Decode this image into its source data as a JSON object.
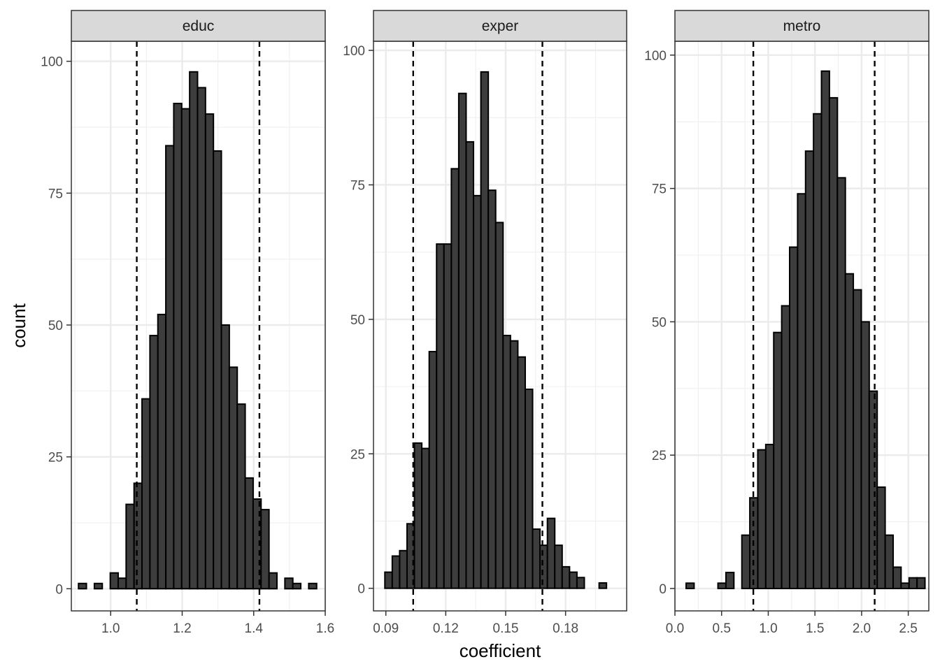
{
  "chart_data": {
    "type": "bar",
    "xlabel": "coefficient",
    "ylabel": "count",
    "grid": true,
    "panels": [
      {
        "name": "educ",
        "xlim": [
          0.89,
          1.6
        ],
        "ylim": [
          -4.2,
          103.8
        ],
        "xticks": [
          1.0,
          1.2,
          1.4,
          1.6
        ],
        "xtick_labels": [
          "1.0",
          "1.2",
          "1.4",
          "1.6"
        ],
        "yticks": [
          0,
          25,
          50,
          75,
          100
        ],
        "ytick_labels": [
          "0",
          "25",
          "50",
          "75",
          "100"
        ],
        "bin_start": 0.91,
        "bin_width": 0.0222,
        "values": [
          1,
          0,
          1,
          0,
          3,
          2,
          16,
          20,
          36,
          48,
          52,
          84,
          92,
          91,
          98,
          95,
          90,
          83,
          50,
          42,
          35,
          21,
          17,
          15,
          3,
          0,
          2,
          1,
          0,
          1
        ],
        "ci_lines": [
          1.073,
          1.416
        ]
      },
      {
        "name": "exper",
        "xlim": [
          0.0838,
          0.2106
        ],
        "ylim": [
          -4.2,
          101.7
        ],
        "xticks": [
          0.09,
          0.12,
          0.15,
          0.18
        ],
        "xtick_labels": [
          "0.09",
          "0.12",
          "0.15",
          "0.18"
        ],
        "yticks": [
          0,
          25,
          50,
          75,
          100
        ],
        "ytick_labels": [
          "0",
          "25",
          "50",
          "75",
          "100"
        ],
        "bin_start": 0.0895,
        "bin_width": 0.0037,
        "values": [
          3,
          6,
          7,
          12,
          27,
          26,
          44,
          64,
          64,
          78,
          92,
          83,
          73,
          96,
          74,
          68,
          47,
          46,
          43,
          37,
          11,
          8,
          13,
          8,
          4,
          3,
          2,
          0,
          0,
          1
        ],
        "ci_lines": [
          0.1037,
          0.1684
        ]
      },
      {
        "name": "metro",
        "xlim": [
          0.0,
          2.72
        ],
        "ylim": [
          -4.2,
          102.6
        ],
        "xticks": [
          0.0,
          0.5,
          1.0,
          1.5,
          2.0,
          2.5
        ],
        "xtick_labels": [
          "0.0",
          "0.5",
          "1.0",
          "1.5",
          "2.0",
          "2.5"
        ],
        "yticks": [
          0,
          25,
          50,
          75,
          100
        ],
        "ytick_labels": [
          "0",
          "25",
          "50",
          "75",
          "100"
        ],
        "bin_start": 0.12,
        "bin_width": 0.0853,
        "values": [
          1,
          0,
          0,
          0,
          1,
          3,
          0,
          10,
          17,
          26,
          27,
          48,
          53,
          64,
          74,
          82,
          89,
          97,
          92,
          77,
          59,
          56,
          50,
          37,
          19,
          10,
          4,
          1,
          2,
          2
        ],
        "ci_lines": [
          0.84,
          2.14
        ]
      }
    ]
  }
}
